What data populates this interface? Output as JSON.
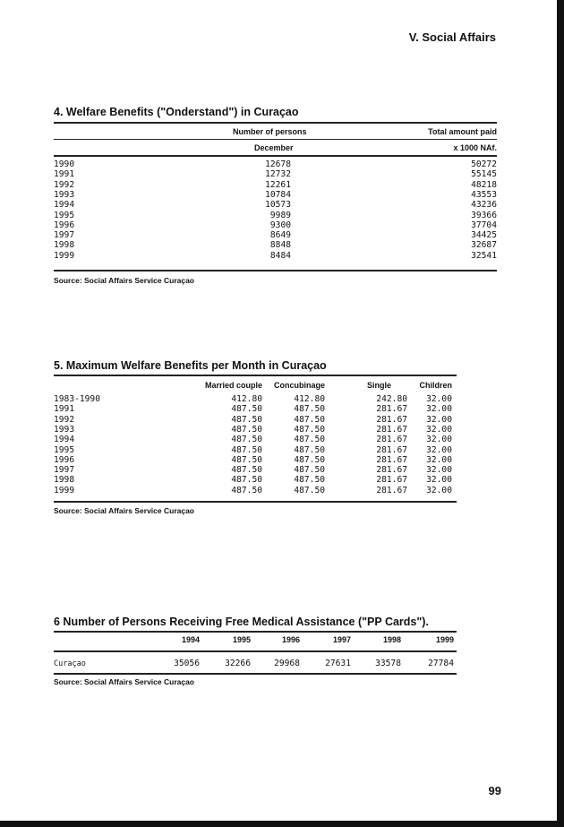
{
  "header": {
    "section": "V. Social Affairs"
  },
  "t4": {
    "title": "4. Welfare Benefits (\"Onderstand\") in Curaçao",
    "col1": "Number of persons",
    "col2": "Total amount paid",
    "sub1": "December",
    "sub2": "x 1000 NAf.",
    "rows": [
      [
        "1990",
        "12678",
        "50272"
      ],
      [
        "1991",
        "12732",
        "55145"
      ],
      [
        "1992",
        "12261",
        "48218"
      ],
      [
        "1993",
        "10784",
        "43553"
      ],
      [
        "1994",
        "10573",
        "43236"
      ],
      [
        "1995",
        "9989",
        "39366"
      ],
      [
        "1996",
        "9300",
        "37704"
      ],
      [
        "1997",
        "8649",
        "34425"
      ],
      [
        "1998",
        "8848",
        "32687"
      ],
      [
        "1999",
        "8484",
        "32541"
      ]
    ],
    "source": "Source: Social Affairs Service Curaçao"
  },
  "t5": {
    "title": "5. Maximum Welfare Benefits per Month in Curaçao",
    "cols": [
      "Married couple",
      "Concubinage",
      "Single",
      "Children"
    ],
    "rows": [
      [
        "1983-1990",
        "412.80",
        "412.80",
        "242.80",
        "32.00"
      ],
      [
        "1991",
        "487.50",
        "487.50",
        "281.67",
        "32.00"
      ],
      [
        "1992",
        "487.50",
        "487.50",
        "281.67",
        "32.00"
      ],
      [
        "1993",
        "487.50",
        "487.50",
        "281.67",
        "32.00"
      ],
      [
        "1994",
        "487.50",
        "487.50",
        "281.67",
        "32.00"
      ],
      [
        "1995",
        "487.50",
        "487.50",
        "281.67",
        "32.00"
      ],
      [
        "1996",
        "487.50",
        "487.50",
        "281.67",
        "32.00"
      ],
      [
        "1997",
        "487.50",
        "487.50",
        "281.67",
        "32.00"
      ],
      [
        "1998",
        "487.50",
        "487.50",
        "281.67",
        "32.00"
      ],
      [
        "1999",
        "487.50",
        "487.50",
        "281.67",
        "32.00"
      ]
    ],
    "source": "Source: Social Affairs Service Curaçao"
  },
  "t6": {
    "title": "6  Number of Persons Receiving Free Medical Assistance  (\"PP Cards\").",
    "years": [
      "1994",
      "1995",
      "1996",
      "1997",
      "1998",
      "1999"
    ],
    "row_label": "Curaçao",
    "values": [
      "35056",
      "32266",
      "29968",
      "27631",
      "33578",
      "27784"
    ],
    "source": "Source: Social Affairs Service Curaçao"
  },
  "footer": {
    "page_number": "99"
  }
}
